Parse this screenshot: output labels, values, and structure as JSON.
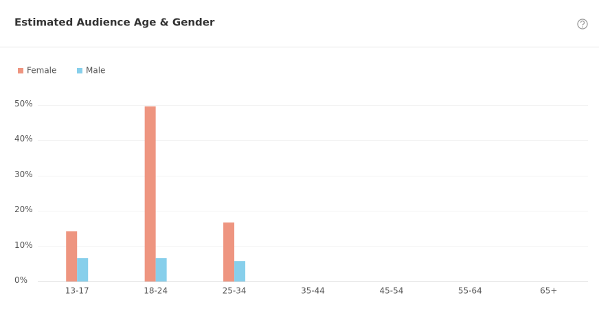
{
  "chart_data": {
    "type": "bar",
    "title": "Estimated Audience Age & Gender",
    "categories": [
      "13-17",
      "18-24",
      "25-34",
      "35-44",
      "45-54",
      "55-64",
      "65+"
    ],
    "series": [
      {
        "name": "Female",
        "color": "#ee9580",
        "values": [
          14.2,
          49.6,
          16.7,
          0,
          0,
          0,
          0
        ]
      },
      {
        "name": "Male",
        "color": "#87cfeb",
        "values": [
          6.6,
          6.6,
          5.8,
          0,
          0,
          0,
          0
        ]
      }
    ],
    "ylim": [
      0,
      50
    ],
    "yticks": [
      {
        "value": 0,
        "label": "0%"
      },
      {
        "value": 10,
        "label": "10%"
      },
      {
        "value": 20,
        "label": "20%"
      },
      {
        "value": 30,
        "label": "30%"
      },
      {
        "value": 40,
        "label": "40%"
      },
      {
        "value": 50,
        "label": "50%"
      }
    ],
    "grid": true
  }
}
